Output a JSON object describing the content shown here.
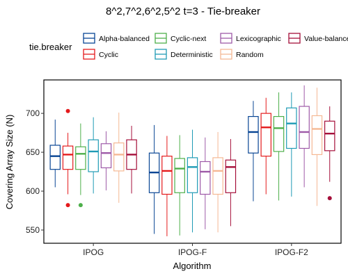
{
  "chart_data": {
    "type": "boxplot",
    "title": "8^2,7^2,6^2,5^2 t=3 - Tie-breaker",
    "xlabel": "Algorithm",
    "ylabel": "Covering Array Size (N)",
    "categories": [
      "IPOG",
      "IPOG-F",
      "IPOG-F2"
    ],
    "ylim": [
      533,
      743
    ],
    "yticks": [
      550,
      600,
      650,
      700
    ],
    "grid": false,
    "legend": {
      "title": "tie.breaker",
      "placement": "top"
    },
    "series": [
      {
        "name": "Alpha-balanced",
        "color": "#084594",
        "boxes": [
          {
            "whisker_low": 605,
            "q1": 628,
            "median": 645,
            "q3": 659,
            "whisker_high": 692,
            "outliers": []
          },
          {
            "whisker_low": 545,
            "q1": 598,
            "median": 624,
            "q3": 649,
            "whisker_high": 685,
            "outliers": []
          },
          {
            "whisker_low": 587,
            "q1": 649,
            "median": 676,
            "q3": 696,
            "whisker_high": 716,
            "outliers": []
          }
        ]
      },
      {
        "name": "Cyclic",
        "color": "#e41a1c",
        "boxes": [
          {
            "whisker_low": 596,
            "q1": 628,
            "median": 647,
            "q3": 658,
            "whisker_high": 675,
            "outliers": [
              703,
              582
            ]
          },
          {
            "whisker_low": 542,
            "q1": 596,
            "median": 626,
            "q3": 645,
            "whisker_high": 671,
            "outliers": []
          },
          {
            "whisker_low": 596,
            "q1": 645,
            "median": 682,
            "q3": 700,
            "whisker_high": 720,
            "outliers": []
          }
        ]
      },
      {
        "name": "Cyclic-next",
        "color": "#4daf4a",
        "boxes": [
          {
            "whisker_low": 595,
            "q1": 628,
            "median": 648,
            "q3": 657,
            "whisker_high": 687,
            "outliers": [
              582
            ]
          },
          {
            "whisker_low": 543,
            "q1": 598,
            "median": 629,
            "q3": 642,
            "whisker_high": 672,
            "outliers": []
          },
          {
            "whisker_low": 588,
            "q1": 651,
            "median": 681,
            "q3": 696,
            "whisker_high": 727,
            "outliers": []
          }
        ]
      },
      {
        "name": "Deterministic",
        "color": "#1f9bb5",
        "boxes": [
          {
            "whisker_low": 597,
            "q1": 625,
            "median": 651,
            "q3": 666,
            "whisker_high": 695,
            "outliers": []
          },
          {
            "whisker_low": 547,
            "q1": 598,
            "median": 631,
            "q3": 643,
            "whisker_high": 679,
            "outliers": []
          },
          {
            "whisker_low": 593,
            "q1": 655,
            "median": 687,
            "q3": 707,
            "whisker_high": 727,
            "outliers": []
          }
        ]
      },
      {
        "name": "Lexicographic",
        "color": "#9e5aa8",
        "boxes": [
          {
            "whisker_low": 601,
            "q1": 630,
            "median": 649,
            "q3": 661,
            "whisker_high": 677,
            "outliers": []
          },
          {
            "whisker_low": 551,
            "q1": 596,
            "median": 625,
            "q3": 638,
            "whisker_high": 669,
            "outliers": []
          },
          {
            "whisker_low": 605,
            "q1": 655,
            "median": 676,
            "q3": 709,
            "whisker_high": 736,
            "outliers": []
          }
        ]
      },
      {
        "name": "Random",
        "color": "#f5b894",
        "boxes": [
          {
            "whisker_low": 585,
            "q1": 626,
            "median": 647,
            "q3": 662,
            "whisker_high": 701,
            "outliers": []
          },
          {
            "whisker_low": 547,
            "q1": 596,
            "median": 626,
            "q3": 643,
            "whisker_high": 676,
            "outliers": []
          },
          {
            "whisker_low": 581,
            "q1": 647,
            "median": 680,
            "q3": 697,
            "whisker_high": 733,
            "outliers": []
          }
        ]
      },
      {
        "name": "Value-balanced",
        "color": "#a50f3a",
        "boxes": [
          {
            "whisker_low": 597,
            "q1": 628,
            "median": 647,
            "q3": 666,
            "whisker_high": 684,
            "outliers": []
          },
          {
            "whisker_low": 555,
            "q1": 598,
            "median": 631,
            "q3": 640,
            "whisker_high": 667,
            "outliers": []
          },
          {
            "whisker_low": 612,
            "q1": 652,
            "median": 674,
            "q3": 690,
            "whisker_high": 709,
            "outliers": [
              591
            ]
          }
        ]
      }
    ]
  }
}
